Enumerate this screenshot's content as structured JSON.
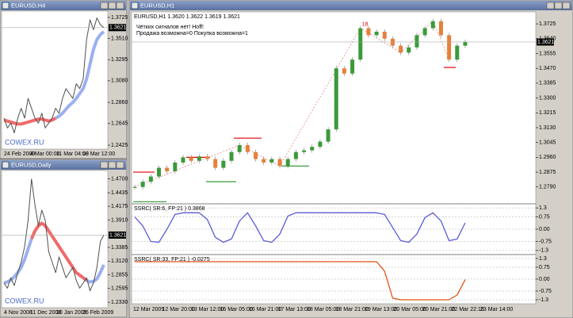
{
  "windows": [
    {
      "title": "EURUSD,H4",
      "ylim": [
        1.2385,
        1.3789
      ],
      "yticks": [
        1.3725,
        {
          "value": 1.351,
          "label": "1.3510"
        },
        1.3295,
        {
          "value": 1.308,
          "label": "1.3080"
        },
        {
          "value": 1.286,
          "label": "1.2860"
        },
        1.2645,
        1.2425
      ],
      "current": 1.3621,
      "xlabels": [
        "24 Feb 2009",
        "4 Mar 00:00",
        "11 Mar 04:00",
        "18 Mar 12:00"
      ],
      "watermark": "COWEX.RU",
      "prices": [
        1.27,
        1.26,
        1.265,
        1.255,
        1.27,
        1.28,
        1.27,
        1.29,
        1.28,
        1.27,
        1.265,
        1.275,
        1.26,
        1.265,
        1.27,
        1.28,
        1.275,
        1.29,
        1.3,
        1.295,
        1.29,
        1.305,
        1.3,
        1.31,
        1.35,
        1.37,
        1.36,
        1.372,
        1.365,
        1.3621
      ],
      "ma": [
        {
          "color": "#f06a6a",
          "values": [
            1.268,
            1.267,
            1.266,
            1.265,
            1.264,
            1.264,
            1.265,
            1.266,
            1.267,
            1.268,
            1.269,
            1.269,
            1.268,
            1.267,
            1.268,
            1.27,
            null,
            null,
            null,
            null,
            null,
            null,
            null,
            null,
            null,
            null,
            null,
            null,
            null,
            null
          ]
        },
        {
          "color": "#9bb0f0",
          "values": [
            null,
            null,
            null,
            null,
            null,
            null,
            null,
            null,
            null,
            null,
            null,
            null,
            null,
            null,
            null,
            1.27,
            1.272,
            1.275,
            1.279,
            1.283,
            1.286,
            1.29,
            1.295,
            1.3,
            1.31,
            1.325,
            1.34,
            1.35,
            1.355,
            1.358
          ]
        }
      ]
    },
    {
      "title": "EURUSD,Daily",
      "ylim": [
        1.2225,
        1.4863
      ],
      "yticks": [
        {
          "value": 1.47,
          "label": "1.4700"
        },
        1.4435,
        1.4175,
        {
          "value": 1.391,
          "label": "1.3910"
        },
        1.3385,
        {
          "value": 1.312,
          "label": "1.3120"
        },
        1.2855,
        1.2595,
        {
          "value": 1.233,
          "label": "1.2330"
        }
      ],
      "current": 1.3621,
      "xlabels": [
        "4 Nov 2008",
        "11 Dec 2008",
        "20 Jan 2009",
        "26 Feb 2009"
      ],
      "watermark": "COWEX.RU",
      "prices": [
        1.27,
        1.26,
        1.28,
        1.265,
        1.29,
        1.31,
        1.34,
        1.39,
        1.47,
        1.42,
        1.38,
        1.41,
        1.39,
        1.33,
        1.31,
        1.29,
        1.32,
        1.3,
        1.28,
        1.29,
        1.3,
        1.275,
        1.26,
        1.27,
        1.28,
        1.255,
        1.27,
        1.3,
        1.35,
        1.3621
      ],
      "ma": [
        {
          "color": "#9bb0f0",
          "values": [
            1.27,
            1.272,
            1.276,
            1.282,
            1.29,
            1.3,
            1.315,
            1.335,
            1.355,
            null,
            null,
            null,
            null,
            null,
            null,
            null,
            null,
            null,
            null,
            null,
            null,
            null,
            null,
            null,
            null,
            null,
            null,
            null,
            null,
            null
          ]
        },
        {
          "color": "#f06a6a",
          "values": [
            null,
            null,
            null,
            null,
            null,
            null,
            null,
            null,
            1.355,
            1.37,
            1.38,
            1.385,
            1.38,
            1.37,
            1.36,
            1.35,
            1.34,
            1.33,
            1.32,
            1.31,
            1.3,
            1.29,
            1.285,
            1.28,
            1.275,
            null,
            null,
            null,
            null,
            null
          ]
        },
        {
          "color": "#9bb0f0",
          "values": [
            null,
            null,
            null,
            null,
            null,
            null,
            null,
            null,
            null,
            null,
            null,
            null,
            null,
            null,
            null,
            null,
            null,
            null,
            null,
            null,
            null,
            null,
            null,
            null,
            1.275,
            1.272,
            1.273,
            1.278,
            1.29,
            1.305
          ]
        }
      ]
    },
    {
      "title": "EURUSD,H1",
      "header": "EURUSD,H1  1.3620 1.3622 1.3619 1.3621",
      "messages": [
        "Чётких сигналов нет!  Hoff!",
        "Продажа возможна=0  Покупка возможна=1"
      ],
      "annotation": "18",
      "ylim": [
        1.2698,
        1.3789
      ],
      "yticks": [
        1.3725,
        {
          "value": 1.364,
          "label": "1.3640"
        },
        1.3555,
        {
          "value": 1.347,
          "label": "1.3470"
        },
        1.3385,
        {
          "value": 1.33,
          "label": "1.3300"
        },
        1.3215,
        {
          "value": 1.313,
          "label": "1.3130"
        },
        1.3045,
        {
          "value": 1.296,
          "label": "1.2960"
        },
        1.2875,
        {
          "value": 1.279,
          "label": "1.2790"
        }
      ],
      "current": 1.3621,
      "xlabels": [
        "12 Mar 2009",
        "12 Mar 20:00",
        "13 Mar 12:00",
        "16 Mar 05:00",
        "16 Mar 21:00",
        "17 Mar 13:00",
        "18 Mar 05:00",
        "18 Mar 21:00",
        "19 Mar 13:00",
        "20 Mar 05:00",
        "20 Mar 21:00",
        "22 Mar 22:15",
        "23 Mar 14:00"
      ],
      "up_color": "#3a9a3a",
      "down_color": "#e8803a",
      "prices": [
        1.279,
        1.282,
        1.285,
        1.29,
        1.288,
        1.293,
        1.296,
        1.294,
        1.2965,
        1.295,
        1.29,
        1.294,
        1.299,
        1.303,
        1.299,
        1.295,
        1.293,
        1.295,
        1.291,
        1.295,
        1.299,
        1.3,
        1.302,
        1.305,
        1.312,
        1.347,
        1.344,
        1.352,
        1.37,
        1.366,
        1.368,
        1.364,
        1.36,
        1.356,
        1.359,
        1.366,
        1.37,
        1.374,
        1.366,
        1.352,
        1.36,
        1.3621
      ],
      "levels": [
        {
          "value": 1.2875,
          "color": "#e00000"
        },
        {
          "value": 1.2705,
          "color": "#3a9a3a"
        },
        {
          "value": 1.296,
          "color": "#e00000"
        },
        {
          "value": 1.282,
          "color": "#3a9a3a"
        },
        {
          "value": 1.307,
          "color": "#e00000"
        },
        {
          "value": 1.291,
          "color": "#3a9a3a"
        },
        {
          "value": 1.3475,
          "color": "#e00000"
        }
      ],
      "indicators": [
        {
          "label": "SSRC( SR:6, FP:21 ) 0.3868",
          "color": "#5a5ad8",
          "ylim": [
            -1.5,
            1.5
          ],
          "yticks": [
            1.3,
            0.75,
            {
              "value": 0,
              "label": "0.00"
            },
            -0.75,
            -1.3
          ],
          "values": [
            0.75,
            0.2,
            -0.75,
            -0.8,
            0,
            0.9,
            1,
            1,
            1,
            0.6,
            -0.5,
            -0.8,
            -0.6,
            0.5,
            1,
            0.2,
            -0.7,
            -0.8,
            -0.3,
            0.8,
            1,
            1,
            1,
            1,
            1,
            1,
            1,
            1,
            1,
            1,
            1,
            0.9,
            0.1,
            -0.7,
            -0.8,
            -0.3,
            0.7,
            1,
            0.5,
            -0.7,
            -0.6,
            0.3868
          ]
        },
        {
          "label": "SSRC( SR:33, FP:21 ) -0.0275",
          "color": "#e05010",
          "ylim": [
            -1.5,
            1.5
          ],
          "yticks": [
            1.3,
            0.75,
            {
              "value": 0,
              "label": "0.00"
            },
            -0.75,
            -1.3
          ],
          "values": [
            1.1,
            1.1,
            1.1,
            1.1,
            1.1,
            1.1,
            1.1,
            1.1,
            1.1,
            1.1,
            1.1,
            1.1,
            1.1,
            1.1,
            1.1,
            1.1,
            1.1,
            1.1,
            1.1,
            1.1,
            1.1,
            1.1,
            1.1,
            1.1,
            1.1,
            1.1,
            1.1,
            1.1,
            1.1,
            1.1,
            1.1,
            0.5,
            -1.2,
            -1.3,
            -1.3,
            -1.3,
            -1.3,
            -1.3,
            -1.3,
            -1.3,
            -1.0,
            -0.0275
          ]
        }
      ]
    }
  ]
}
